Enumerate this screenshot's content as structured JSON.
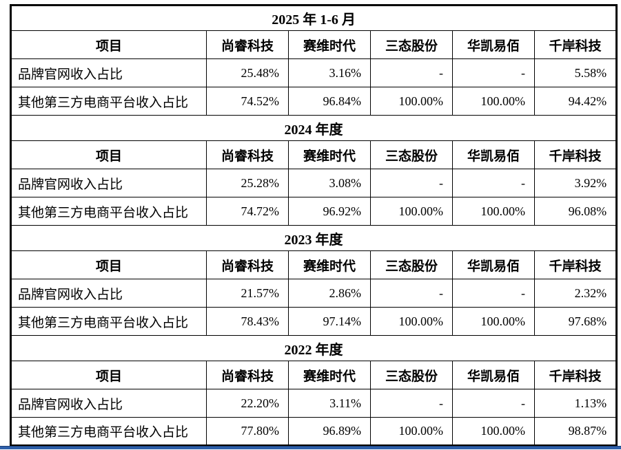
{
  "colors": {
    "text": "#000000",
    "table_border": "#000000",
    "bottom_rule": "#2d5fa9"
  },
  "table": {
    "columns": [
      "项目",
      "尚睿科技",
      "赛维时代",
      "三态股份",
      "华凯易佰",
      "千岸科技"
    ],
    "row_labels": [
      "品牌官网收入占比",
      "其他第三方电商平台收入占比"
    ],
    "sections": [
      {
        "title": "2025 年 1-6 月",
        "rows": [
          [
            "25.48%",
            "3.16%",
            "-",
            "-",
            "5.58%"
          ],
          [
            "74.52%",
            "96.84%",
            "100.00%",
            "100.00%",
            "94.42%"
          ]
        ]
      },
      {
        "title": "2024 年度",
        "rows": [
          [
            "25.28%",
            "3.08%",
            "-",
            "-",
            "3.92%"
          ],
          [
            "74.72%",
            "96.92%",
            "100.00%",
            "100.00%",
            "96.08%"
          ]
        ]
      },
      {
        "title": "2023 年度",
        "rows": [
          [
            "21.57%",
            "2.86%",
            "-",
            "-",
            "2.32%"
          ],
          [
            "78.43%",
            "97.14%",
            "100.00%",
            "100.00%",
            "97.68%"
          ]
        ]
      },
      {
        "title": "2022 年度",
        "rows": [
          [
            "22.20%",
            "3.11%",
            "-",
            "-",
            "1.13%"
          ],
          [
            "77.80%",
            "96.89%",
            "100.00%",
            "100.00%",
            "98.87%"
          ]
        ]
      }
    ]
  }
}
